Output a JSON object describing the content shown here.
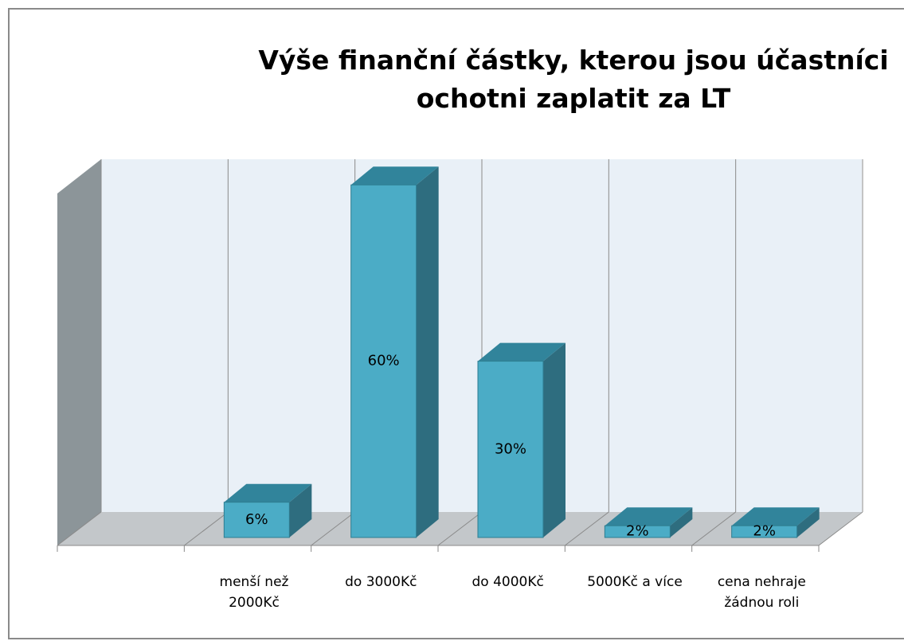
{
  "chart_data": {
    "type": "bar3d",
    "title": "Výše finanční částky, kterou jsou účastníci ochotni zaplatit za LT",
    "categories": [
      null,
      "menší než 2000Kč",
      "do 3000Kč",
      "do 4000Kč",
      "5000Kč a více",
      "cena nehraje žádnou roli"
    ],
    "values": [
      null,
      6,
      60,
      30,
      2,
      2
    ],
    "value_labels": [
      null,
      "6%",
      "60%",
      "30%",
      "2%",
      "2%"
    ],
    "color": "#4bacc6",
    "grid": true
  }
}
